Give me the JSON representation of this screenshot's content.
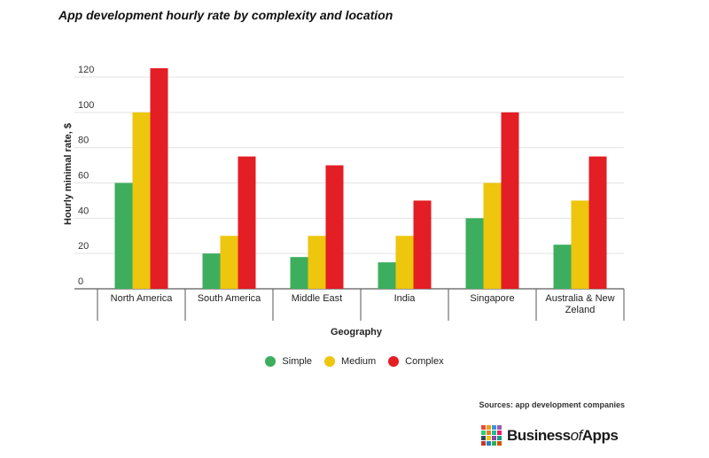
{
  "title": "App development hourly rate by complexity and location",
  "chart_data": {
    "type": "bar",
    "title": "App development hourly rate by complexity and location",
    "xlabel": "Geography",
    "ylabel": "Hourly minimal rate, $",
    "categories": [
      "North America",
      "South America",
      "Middle East",
      "India",
      "Singapore",
      "Australia & New Zeland"
    ],
    "series": [
      {
        "name": "Simple",
        "color": "#3dae5e",
        "values": [
          60,
          20,
          18,
          15,
          40,
          25
        ]
      },
      {
        "name": "Medium",
        "color": "#edc60d",
        "values": [
          100,
          30,
          30,
          30,
          60,
          50
        ]
      },
      {
        "name": "Complex",
        "color": "#e31e24",
        "values": [
          125,
          75,
          70,
          50,
          100,
          75
        ]
      }
    ],
    "ylim": [
      0,
      120
    ],
    "yticks": [
      "0",
      "20",
      "40",
      "60",
      "80",
      "100",
      "120"
    ],
    "grid": true,
    "legend_position": "bottom-center"
  },
  "legend": [
    {
      "label": "Simple",
      "color": "#3dae5e"
    },
    {
      "label": "Medium",
      "color": "#edc60d"
    },
    {
      "label": "Complex",
      "color": "#e31e24"
    }
  ],
  "source": "Sources: app development companies",
  "brand": {
    "prefix": "Business",
    "of": "of",
    "suffix": "Apps",
    "mark_colors": [
      "#e74c3c",
      "#f39c12",
      "#3498db",
      "#9b59b6",
      "#2ecc71",
      "#e67e22",
      "#1abc9c",
      "#e91e63",
      "#34495e",
      "#f1c40f",
      "#8e44ad",
      "#16a085",
      "#c0392b",
      "#2980b9",
      "#27ae60",
      "#d35400"
    ]
  }
}
